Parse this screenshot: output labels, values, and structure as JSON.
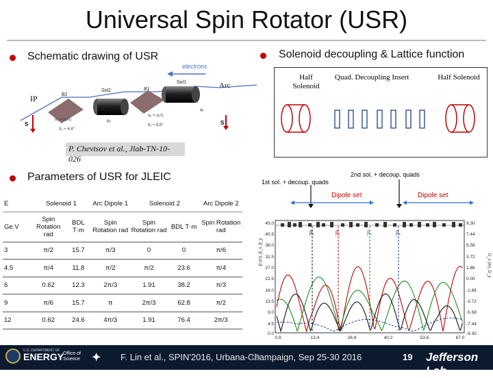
{
  "title": "Universal Spin Rotator (USR)",
  "left_heading": "Schematic drawing of USR",
  "right_heading": "Solenoid decoupling & Lattice function",
  "schematic": {
    "electrons": "electrons",
    "arc": "Arc",
    "ip": "IP",
    "b2": "B2",
    "sol2": "Sol2",
    "b1": "B1",
    "sol1": "Sol1",
    "s_vec": "S",
    "alpha2": "α₂ = α₂π₂",
    "phi2": "φ₂",
    "delta2": "δ₂ ≈ 4.4°",
    "alpha1": "α₁ = α₁π₁",
    "phi1": "φ₁",
    "delta1": "δ₁ ≈ 8.8°"
  },
  "citation": "P. Chevtsov et al., Jlab-TN-10-026",
  "lattice": {
    "half_solenoid_left": "Half Solenoid",
    "quad_insert": "Quad. Decoupling Insert",
    "half_solenoid_right": "Half Solenoid"
  },
  "params_heading": "Parameters of USR for JLEIC",
  "table": {
    "header1": [
      "E",
      "Solenoid 1",
      "Arc Dipole 1",
      "Solenoid 2",
      "Arc Dipole 2"
    ],
    "header2": [
      "Ge.V",
      "Spin Rotation rad",
      "BDL T·m",
      "Spin Rotation rad",
      "Spin Rotation rad",
      "BDL T·m",
      "Spin Rotation rad"
    ],
    "rows": [
      [
        "3",
        "π/2",
        "15.7",
        "π/3",
        "0",
        "0",
        "π/6"
      ],
      [
        "4.5",
        "π/4",
        "11.8",
        "π/2",
        "π/2",
        "23.6",
        "π/4"
      ],
      [
        "6",
        "0.62",
        "12.3",
        "2π/3",
        "1.91",
        "38.2",
        "π/3"
      ],
      [
        "9",
        "π/6",
        "15.7",
        "π",
        "2π/3",
        "62.8",
        "π/2"
      ],
      [
        "12",
        "0.62",
        "24.6",
        "4π/3",
        "1.91",
        "76.4",
        "2π/3"
      ]
    ]
  },
  "plot": {
    "label_1st": "1st sol. + decoup. quads",
    "label_2nd": "2nd sol. + decoup. quads",
    "dipole_left": "Dipole set",
    "dipole_right": "Dipole set",
    "ylabel_left": "β (m), β_x, β_y",
    "ylabel_right": "D_x (m), D_y",
    "yticks_left": [
      "45.0",
      "40.5",
      "36.0",
      "31.5",
      "27.0",
      "22.5",
      "18.0",
      "13.5",
      "9.0",
      "4.5",
      "0.0"
    ],
    "yticks_right": [
      "9.30",
      "7.44",
      "5.58",
      "3.72",
      "1.86",
      "0.00",
      "-1.86",
      "-3.72",
      "-5.58",
      "-7.44",
      "-9.30"
    ],
    "xticks": [
      "0.9",
      "13.4",
      "26.8",
      "40.2",
      "53.6",
      "67.0"
    ],
    "beta_labels": [
      "β₁",
      "β₂",
      "β₃",
      "β₄"
    ]
  },
  "footer": {
    "citation": "F. Lin et al., SPIN'2016, Urbana-Champaign, Sep 25-30 2016",
    "page": "19",
    "faint_page": "19",
    "lab": "Jefferson Lab",
    "energy": "ENERGY",
    "doe": "U.S. DEPARTMENT OF",
    "office": "Office of Science"
  }
}
